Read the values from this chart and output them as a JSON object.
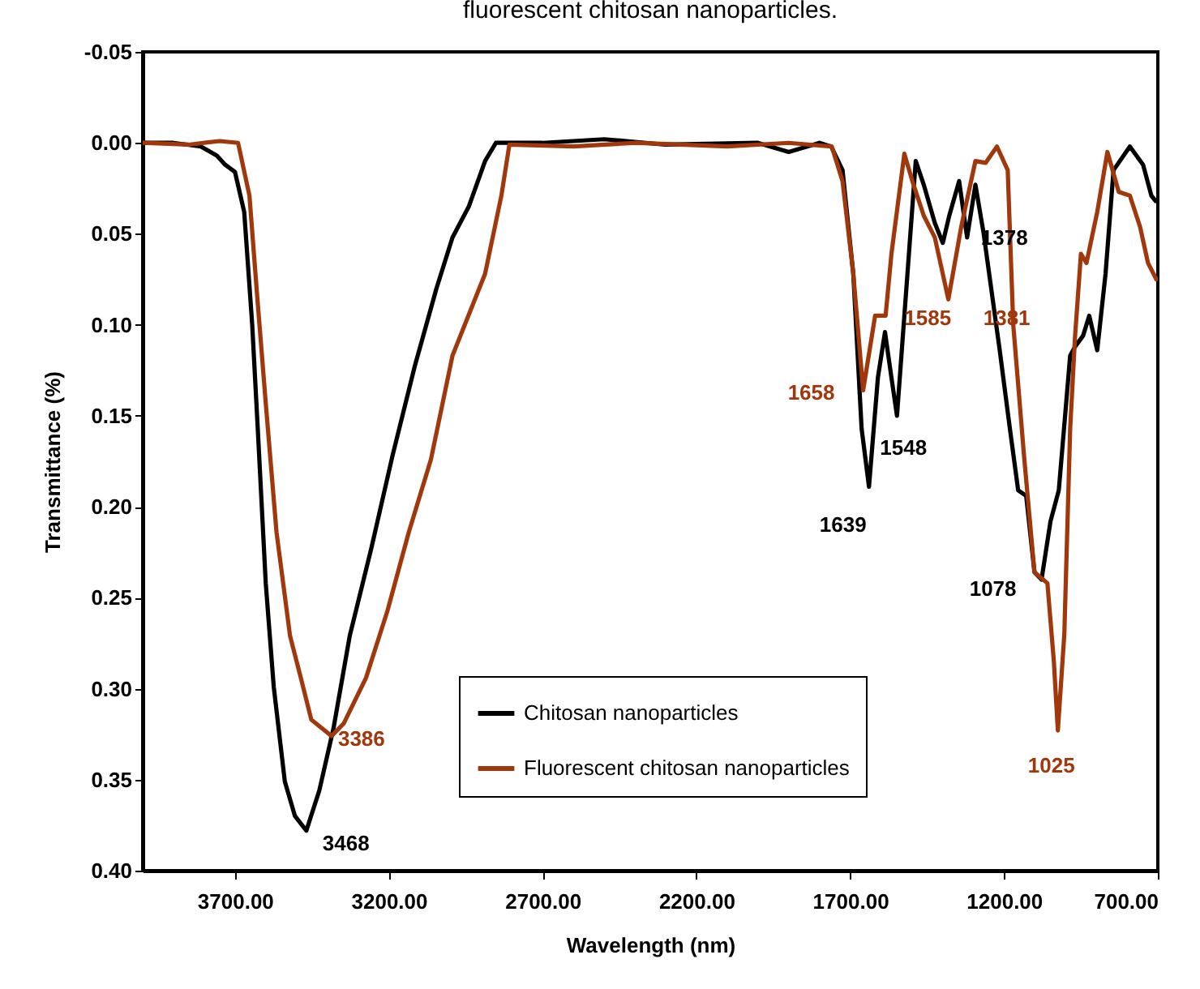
{
  "chart_data": {
    "type": "line",
    "title": "fluorescent chitosan nanoparticles.",
    "xlabel": "Wavelength (nm)",
    "ylabel": "Transmittance (%)",
    "xlim": [
      4000,
      700
    ],
    "ylim": [
      0.4,
      -0.05
    ],
    "xticks": [
      {
        "value": 3700,
        "label": "3700.00"
      },
      {
        "value": 3200,
        "label": "3200.00"
      },
      {
        "value": 2700,
        "label": "2700.00"
      },
      {
        "value": 2200,
        "label": "2200.00"
      },
      {
        "value": 1700,
        "label": "1700.00"
      },
      {
        "value": 1200,
        "label": "1200.00"
      },
      {
        "value": 700,
        "label": "700.00"
      }
    ],
    "yticks": [
      {
        "value": -0.05,
        "label": "-0.05"
      },
      {
        "value": 0,
        "label": "0.00"
      },
      {
        "value": 0.05,
        "label": "0.05"
      },
      {
        "value": 0.1,
        "label": "0.10"
      },
      {
        "value": 0.15,
        "label": "0.15"
      },
      {
        "value": 0.2,
        "label": "0.20"
      },
      {
        "value": 0.25,
        "label": "0.25"
      },
      {
        "value": 0.3,
        "label": "0.30"
      },
      {
        "value": 0.35,
        "label": "0.35"
      },
      {
        "value": 0.4,
        "label": "0.40"
      }
    ],
    "grid": false,
    "legend": "bottom",
    "series": [
      {
        "name": "Chitosan nanoparticles",
        "color": "#000000",
        "x": [
          4000,
          3900,
          3811,
          3759,
          3732,
          3700,
          3670,
          3644,
          3626,
          3600,
          3574,
          3538,
          3505,
          3468,
          3426,
          3380,
          3327,
          3257,
          3188,
          3116,
          3045,
          2993,
          2940,
          2887,
          2852,
          2700,
          2500,
          2300,
          2000,
          1900,
          1800,
          1762,
          1725,
          1690,
          1663,
          1639,
          1610,
          1587,
          1566,
          1548,
          1514,
          1487,
          1461,
          1425,
          1399,
          1378,
          1346,
          1320,
          1293,
          1267,
          1214,
          1181,
          1154,
          1128,
          1101,
          1078,
          1049,
          1022,
          985,
          969,
          943,
          923,
          897,
          870,
          844,
          791,
          748,
          721,
          707
        ],
        "values": [
          0.0,
          0.0,
          0.002,
          0.007,
          0.012,
          0.016,
          0.038,
          0.1,
          0.157,
          0.242,
          0.299,
          0.351,
          0.37,
          0.378,
          0.356,
          0.322,
          0.271,
          0.223,
          0.172,
          0.123,
          0.08,
          0.052,
          0.035,
          0.01,
          0.0,
          0.0,
          -0.002,
          0.001,
          0.0,
          0.005,
          0.0,
          0.002,
          0.015,
          0.072,
          0.157,
          0.189,
          0.129,
          0.104,
          0.129,
          0.15,
          0.072,
          0.01,
          0.023,
          0.044,
          0.055,
          0.04,
          0.021,
          0.052,
          0.023,
          0.049,
          0.114,
          0.157,
          0.191,
          0.194,
          0.236,
          0.24,
          0.208,
          0.191,
          0.117,
          0.112,
          0.106,
          0.095,
          0.114,
          0.072,
          0.015,
          0.002,
          0.012,
          0.029,
          0.032
        ]
      },
      {
        "name": "Fluorescent chitosan nanoparticles",
        "color": "#a0380c",
        "x": [
          4000,
          3850,
          3750,
          3690,
          3653,
          3627,
          3600,
          3565,
          3521,
          3486,
          3452,
          3386,
          3346,
          3274,
          3204,
          3135,
          3063,
          2993,
          2887,
          2834,
          2808,
          2600,
          2400,
          2100,
          1900,
          1760,
          1725,
          1690,
          1658,
          1619,
          1585,
          1566,
          1524,
          1498,
          1461,
          1425,
          1381,
          1339,
          1293,
          1260,
          1223,
          1188,
          1170,
          1135,
          1101,
          1059,
          1038,
          1025,
          1004,
          985,
          969,
          950,
          932,
          897,
          864,
          827,
          791,
          758,
          732,
          705
        ],
        "values": [
          0.0,
          0.001,
          -0.001,
          0.0,
          0.029,
          0.086,
          0.143,
          0.214,
          0.271,
          0.294,
          0.317,
          0.326,
          0.319,
          0.294,
          0.257,
          0.214,
          0.174,
          0.117,
          0.072,
          0.029,
          0.001,
          0.002,
          0.0,
          0.002,
          0.0,
          0.002,
          0.021,
          0.072,
          0.136,
          0.095,
          0.095,
          0.061,
          0.006,
          0.021,
          0.04,
          0.052,
          0.086,
          0.046,
          0.01,
          0.011,
          0.002,
          0.015,
          0.1,
          0.172,
          0.236,
          0.242,
          0.285,
          0.323,
          0.27,
          0.157,
          0.106,
          0.061,
          0.066,
          0.038,
          0.005,
          0.027,
          0.029,
          0.046,
          0.066,
          0.075
        ]
      }
    ],
    "annotations": [
      {
        "text": "3468",
        "x": 3468,
        "y": 0.378
      },
      {
        "text": "3386",
        "x": 3386,
        "y": 0.326
      },
      {
        "text": "1639",
        "x": 1639,
        "y": 0.189
      },
      {
        "text": "1548",
        "x": 1548,
        "y": 0.15
      },
      {
        "text": "1378",
        "x": 1378,
        "y": 0.04
      },
      {
        "text": "1078",
        "x": 1078,
        "y": 0.24
      },
      {
        "text": "1658",
        "x": 1658,
        "y": 0.136
      },
      {
        "text": "1585",
        "x": 1585,
        "y": 0.095
      },
      {
        "text": "1381",
        "x": 1381,
        "y": 0.086
      },
      {
        "text": "1025",
        "x": 1025,
        "y": 0.323
      }
    ]
  }
}
